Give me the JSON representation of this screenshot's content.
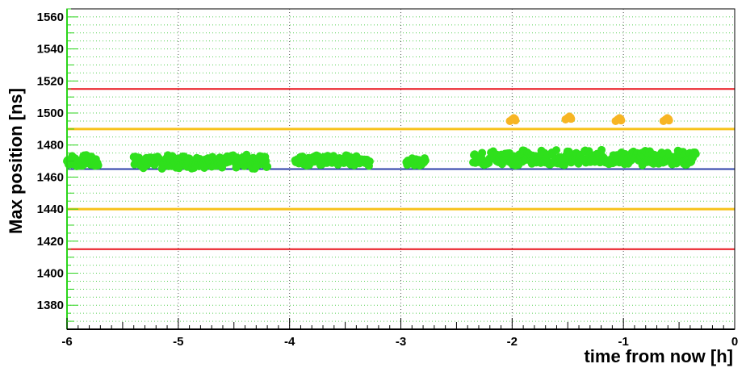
{
  "chart_data": {
    "type": "scatter",
    "xlabel": "time from now [h]",
    "ylabel": "Max position [ns]",
    "xlim": [
      -6,
      0
    ],
    "ylim": [
      1365,
      1565
    ],
    "x_ticks": [
      -6,
      -5,
      -4,
      -3,
      -2,
      -1,
      0
    ],
    "y_ticks": [
      1380,
      1400,
      1420,
      1440,
      1460,
      1480,
      1500,
      1520,
      1540,
      1560
    ],
    "grid": true,
    "reference_lines": [
      {
        "y": 1515,
        "color": "#e8141c"
      },
      {
        "y": 1490,
        "color": "#f7c21a"
      },
      {
        "y": 1465,
        "color": "#2c3fa8"
      },
      {
        "y": 1440,
        "color": "#f7c21a"
      },
      {
        "y": 1415,
        "color": "#e8141c"
      }
    ],
    "series": [
      {
        "color": "#2fe01c",
        "segments": [
          {
            "x_start": -6.0,
            "x_end": -5.72,
            "y_min": 1466,
            "y_max": 1474
          },
          {
            "x_start": -5.4,
            "x_end": -4.2,
            "y_min": 1465,
            "y_max": 1474
          },
          {
            "x_start": -3.95,
            "x_end": -3.28,
            "y_min": 1467,
            "y_max": 1474
          },
          {
            "x_start": -2.95,
            "x_end": -2.78,
            "y_min": 1467,
            "y_max": 1472
          },
          {
            "x_start": -2.35,
            "x_end": -0.35,
            "y_min": 1467,
            "y_max": 1477
          }
        ]
      },
      {
        "color": "#f7b523",
        "points": [
          {
            "x": -2.0,
            "y": 1496
          },
          {
            "x": -1.5,
            "y": 1497
          },
          {
            "x": -1.05,
            "y": 1496
          },
          {
            "x": -0.62,
            "y": 1496
          }
        ]
      }
    ]
  }
}
